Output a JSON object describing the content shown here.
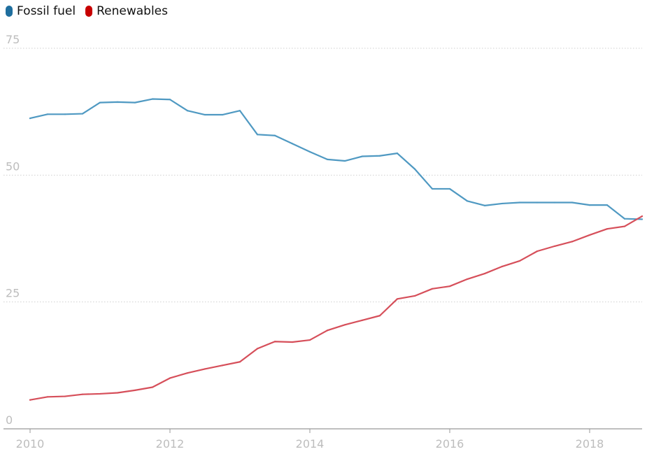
{
  "chart_data": {
    "type": "line",
    "ylim": [
      0,
      75
    ],
    "xlim": [
      2010,
      2018.75
    ],
    "yticks": [
      "0",
      "25",
      "50",
      "75"
    ],
    "xticks": [
      "2010",
      "2012",
      "2014",
      "2016",
      "2018"
    ],
    "grid": true,
    "legend_position": "top-left",
    "series": [
      {
        "name": "Fossil fuel",
        "color": "#4f99c2",
        "legend_color": "#1f6e9e",
        "x": [
          2010,
          2010.25,
          2010.5,
          2010.75,
          2011,
          2011.25,
          2011.5,
          2011.75,
          2012,
          2012.25,
          2012.5,
          2012.75,
          2013,
          2013.25,
          2013.5,
          2013.75,
          2014,
          2014.25,
          2014.5,
          2014.75,
          2015,
          2015.25,
          2015.5,
          2015.75,
          2016,
          2016.25,
          2016.5,
          2016.75,
          2017,
          2017.25,
          2017.5,
          2017.75,
          2018,
          2018.25,
          2018.5,
          2018.75
        ],
        "values": [
          61.2,
          62.0,
          62.0,
          62.1,
          64.3,
          64.4,
          64.3,
          65.0,
          64.9,
          62.7,
          61.9,
          61.9,
          62.7,
          58.0,
          57.8,
          56.2,
          54.6,
          53.1,
          52.8,
          53.7,
          53.8,
          54.3,
          51.2,
          47.3,
          47.3,
          44.9,
          44.0,
          44.4,
          44.6,
          44.6,
          44.6,
          44.6,
          44.1,
          44.1,
          41.4,
          41.3
        ]
      },
      {
        "name": "Renewables",
        "color": "#d64f5a",
        "legend_color": "#c70000",
        "x": [
          2010,
          2010.25,
          2010.5,
          2010.75,
          2011,
          2011.25,
          2011.5,
          2011.75,
          2012,
          2012.25,
          2012.5,
          2012.75,
          2013,
          2013.25,
          2013.5,
          2013.75,
          2014,
          2014.25,
          2014.5,
          2014.75,
          2015,
          2015.25,
          2015.5,
          2015.75,
          2016,
          2016.25,
          2016.5,
          2016.75,
          2017,
          2017.25,
          2017.5,
          2017.75,
          2018,
          2018.25,
          2018.5,
          2018.75
        ],
        "values": [
          5.7,
          6.3,
          6.4,
          6.8,
          6.9,
          7.1,
          7.6,
          8.2,
          10.0,
          11.0,
          11.8,
          12.5,
          13.2,
          15.8,
          17.2,
          17.1,
          17.5,
          19.4,
          20.5,
          21.4,
          22.3,
          25.6,
          26.2,
          27.6,
          28.1,
          29.5,
          30.6,
          32.0,
          33.1,
          35.0,
          36.0,
          36.9,
          38.2,
          39.4,
          39.9,
          41.9
        ]
      }
    ]
  }
}
